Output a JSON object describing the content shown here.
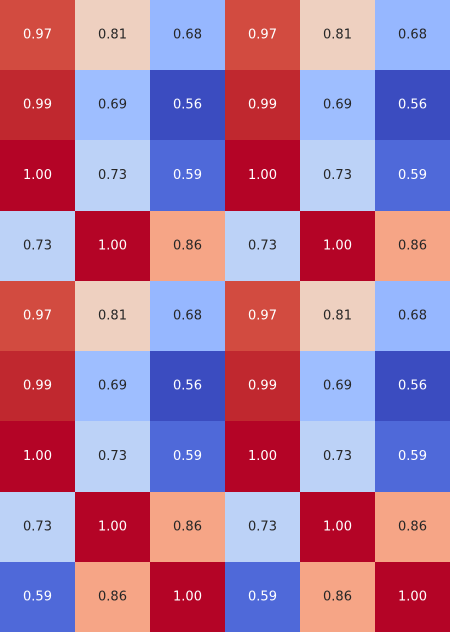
{
  "chart_data": {
    "type": "heatmap",
    "title": "",
    "xlabel": "",
    "ylabel": "",
    "x_tick_labels": [],
    "y_tick_labels": [],
    "legend": "none",
    "colormap": "coolwarm",
    "vmin": 0.56,
    "vmax": 1.0,
    "rows": 9,
    "cols": 6,
    "values": [
      [
        0.97,
        0.81,
        0.68,
        0.97,
        0.81,
        0.68
      ],
      [
        0.99,
        0.69,
        0.56,
        0.99,
        0.69,
        0.56
      ],
      [
        1.0,
        0.73,
        0.59,
        1.0,
        0.73,
        0.59
      ],
      [
        0.73,
        1.0,
        0.86,
        0.73,
        1.0,
        0.86
      ],
      [
        0.97,
        0.81,
        0.68,
        0.97,
        0.81,
        0.68
      ],
      [
        0.99,
        0.69,
        0.56,
        0.99,
        0.69,
        0.56
      ],
      [
        1.0,
        0.73,
        0.59,
        1.0,
        0.73,
        0.59
      ],
      [
        0.73,
        1.0,
        0.86,
        0.73,
        1.0,
        0.86
      ],
      [
        0.59,
        0.86,
        1.0,
        0.59,
        0.86,
        1.0
      ]
    ],
    "labels": [
      [
        "0.97",
        "0.81",
        "0.68",
        "0.97",
        "0.81",
        "0.68"
      ],
      [
        "0.99",
        "0.69",
        "0.56",
        "0.99",
        "0.69",
        "0.56"
      ],
      [
        "1.00",
        "0.73",
        "0.59",
        "1.00",
        "0.73",
        "0.59"
      ],
      [
        "0.73",
        "1.00",
        "0.86",
        "0.73",
        "1.00",
        "0.86"
      ],
      [
        "0.97",
        "0.81",
        "0.68",
        "0.97",
        "0.81",
        "0.68"
      ],
      [
        "0.99",
        "0.69",
        "0.56",
        "0.99",
        "0.69",
        "0.56"
      ],
      [
        "1.00",
        "0.73",
        "0.59",
        "1.00",
        "0.73",
        "0.59"
      ],
      [
        "0.73",
        "1.00",
        "0.86",
        "0.73",
        "1.00",
        "0.86"
      ],
      [
        "0.59",
        "0.86",
        "1.00",
        "0.59",
        "0.86",
        "1.00"
      ]
    ],
    "colors": {
      "0.56": "#3b4cc0",
      "0.59": "#4f69d9",
      "0.68": "#96b7ff",
      "0.69": "#9ebeff",
      "0.73": "#bcd2f7",
      "0.81": "#eed0c0",
      "0.86": "#f6a586",
      "0.97": "#d24b40",
      "0.99": "#c0282f",
      "1.00": "#b40426"
    },
    "text_colors": {
      "light": "#ffffff",
      "dark": "#262626"
    }
  }
}
